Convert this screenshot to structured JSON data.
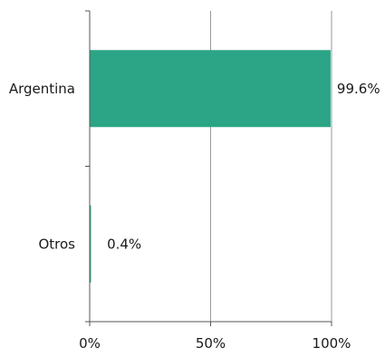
{
  "chart_data": {
    "type": "bar",
    "orientation": "horizontal",
    "categories": [
      "Argentina",
      "Otros"
    ],
    "values": [
      99.6,
      0.4
    ],
    "value_labels": [
      "99.6%",
      "0.4%"
    ],
    "xlim": [
      0,
      100
    ],
    "x_ticks": [
      0,
      50,
      100
    ],
    "x_tick_labels": [
      "0%",
      "50%",
      "100%"
    ],
    "grid": "vertical",
    "bar_color": "#2ba585",
    "title": "",
    "xlabel": "",
    "ylabel": ""
  }
}
